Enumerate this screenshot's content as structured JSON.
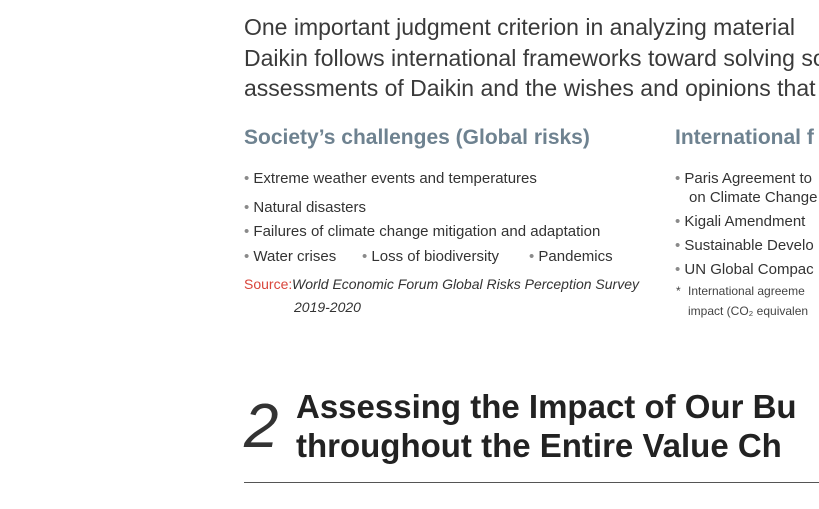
{
  "intro": {
    "lines": [
      "One important judgment criterion in analyzing material",
      "Daikin follows international frameworks toward solving soc",
      "assessments of Daikin and the wishes and opinions that"
    ]
  },
  "society": {
    "heading": "Society’s challenges (Global risks)",
    "items": [
      "Extreme weather events and temperatures",
      "Natural disasters",
      "Failures of climate change mitigation and adaptation",
      "Water crises",
      "Loss of biodiversity",
      "Pandemics"
    ],
    "source_label": "Source:",
    "source_lines": [
      "World Economic Forum Global Risks Perception Survey",
      "2019-2020"
    ]
  },
  "international": {
    "heading": "International f",
    "items": [
      [
        "Paris Agreement to",
        "on Climate Change"
      ],
      [
        "Kigali Amendment"
      ],
      [
        "Sustainable Develo"
      ],
      [
        "UN Global Compac"
      ]
    ],
    "note_mark": "*",
    "note_lines": [
      "International agreeme",
      "impact (CO₂ equivalen"
    ]
  },
  "section": {
    "number": "2",
    "title_lines": [
      "Assessing the Impact of Our Bu",
      "throughout the Entire Value Ch"
    ]
  }
}
